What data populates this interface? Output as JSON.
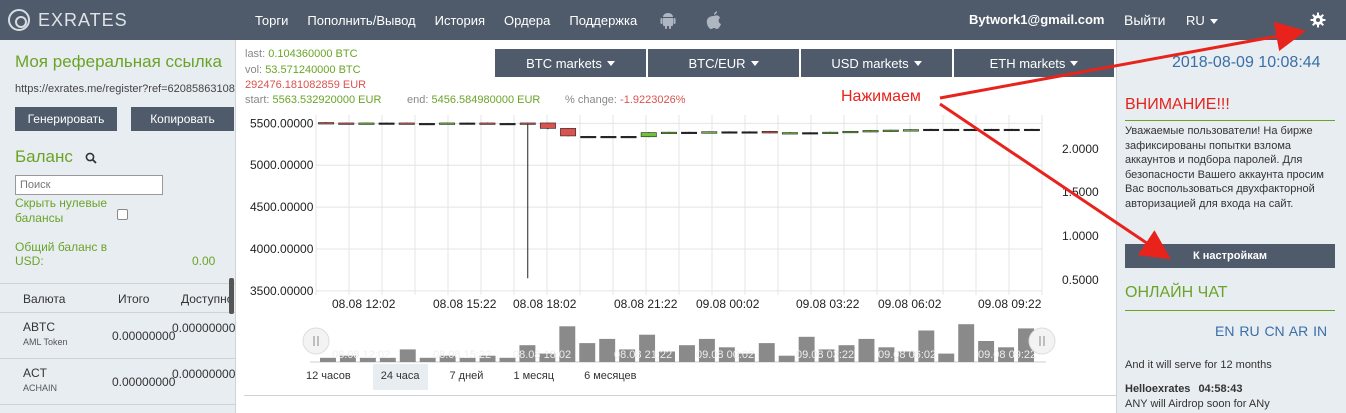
{
  "header": {
    "logo_text": "EXRATES",
    "nav": [
      "Торги",
      "Пополнить/Вывод",
      "История",
      "Ордера",
      "Поддержка"
    ],
    "os_icons": [
      "android-icon",
      "apple-icon"
    ],
    "user_email": "Bytwork1@gmail.com",
    "logout": "Выйти",
    "language": "RU",
    "settings_icon": "gear-icon"
  },
  "referral": {
    "title": "Моя реферальная ссылка",
    "url": "https://exrates.me/register?ref=62085863108",
    "generate_label": "Генерировать",
    "copy_label": "Копировать"
  },
  "balance": {
    "title": "Баланс",
    "search_placeholder": "Поиск",
    "hide_zero_label": "Скрыть нулевые балансы",
    "total_label": "Общий баланс в USD:",
    "total_value": "0.00",
    "columns": [
      "Валюта",
      "Итого",
      "Доступно"
    ],
    "rows": [
      {
        "coin": "ABTC",
        "name": "AML Token",
        "total": "0.00000000",
        "available": "0.00000000"
      },
      {
        "coin": "ACT",
        "name": "ACHAIN",
        "total": "0.00000000",
        "available": "0.00000000"
      }
    ]
  },
  "stats": {
    "last_key": "last:",
    "last_val": "0.104360000 BTC",
    "vol_key": "vol:",
    "vol_val": "53.571240000 BTC",
    "eur_val": "292476.181082859 EUR",
    "start_key": "start:",
    "start_val": "5563.532920000 EUR",
    "end_key": "end:",
    "end_val": "5456.584980000 EUR",
    "change_key": "% change:",
    "change_val": "-1.9223026%"
  },
  "markets": [
    "BTC markets",
    "BTC/EUR",
    "USD markets",
    "ETH markets"
  ],
  "annotation": "Нажимаем",
  "chart_data": {
    "type": "candlestick",
    "y_left_ticks": [
      "5500.00000",
      "5000.00000",
      "4500.00000",
      "4000.00000",
      "3500.00000"
    ],
    "y_right_ticks": [
      "2.0000",
      "1.5000",
      "1.0000",
      "0.5000"
    ],
    "x_ticks": [
      "08.08 12:02",
      "08.08 15:22",
      "08.08 18:02",
      "08.08 21:22",
      "09.08 00:02",
      "09.08 03:22",
      "09.08 06:02",
      "09.08 09:22"
    ],
    "candles": [
      {
        "o": 5510,
        "c": 5505,
        "h": 5515,
        "l": 5500
      },
      {
        "o": 5505,
        "c": 5500,
        "h": 5510,
        "l": 5495
      },
      {
        "o": 5500,
        "c": 5505,
        "h": 5510,
        "l": 5495
      },
      {
        "o": 5505,
        "c": 5505,
        "h": 5510,
        "l": 5500
      },
      {
        "o": 5505,
        "c": 5500,
        "h": 5510,
        "l": 5495
      },
      {
        "o": 5500,
        "c": 5500,
        "h": 5505,
        "l": 5495
      },
      {
        "o": 5500,
        "c": 5505,
        "h": 5510,
        "l": 5495
      },
      {
        "o": 5505,
        "c": 5505,
        "h": 5510,
        "l": 5500
      },
      {
        "o": 5505,
        "c": 5500,
        "h": 5510,
        "l": 5495
      },
      {
        "o": 5500,
        "c": 5500,
        "h": 5505,
        "l": 5495
      },
      {
        "o": 5505,
        "c": 5500,
        "h": 5510,
        "l": 3650
      },
      {
        "o": 5505,
        "c": 5440,
        "h": 5510,
        "l": 5430
      },
      {
        "o": 5440,
        "c": 5350,
        "h": 5445,
        "l": 5345
      },
      {
        "o": 5345,
        "c": 5345,
        "h": 5350,
        "l": 5340
      },
      {
        "o": 5345,
        "c": 5345,
        "h": 5350,
        "l": 5340
      },
      {
        "o": 5345,
        "c": 5345,
        "h": 5350,
        "l": 5340
      },
      {
        "o": 5340,
        "c": 5390,
        "h": 5395,
        "l": 5335
      },
      {
        "o": 5390,
        "c": 5395,
        "h": 5400,
        "l": 5385
      },
      {
        "o": 5395,
        "c": 5395,
        "h": 5400,
        "l": 5390
      },
      {
        "o": 5395,
        "c": 5400,
        "h": 5405,
        "l": 5390
      },
      {
        "o": 5400,
        "c": 5400,
        "h": 5405,
        "l": 5395
      },
      {
        "o": 5400,
        "c": 5400,
        "h": 5405,
        "l": 5395
      },
      {
        "o": 5405,
        "c": 5385,
        "h": 5410,
        "l": 5380
      },
      {
        "o": 5385,
        "c": 5390,
        "h": 5395,
        "l": 5380
      },
      {
        "o": 5390,
        "c": 5390,
        "h": 5395,
        "l": 5385
      },
      {
        "o": 5385,
        "c": 5395,
        "h": 5400,
        "l": 5380
      },
      {
        "o": 5390,
        "c": 5405,
        "h": 5410,
        "l": 5385
      },
      {
        "o": 5400,
        "c": 5415,
        "h": 5420,
        "l": 5395
      },
      {
        "o": 5405,
        "c": 5420,
        "h": 5425,
        "l": 5400
      },
      {
        "o": 5415,
        "c": 5425,
        "h": 5430,
        "l": 5410
      },
      {
        "o": 5430,
        "c": 5430,
        "h": 5435,
        "l": 5425
      },
      {
        "o": 5430,
        "c": 5430,
        "h": 5435,
        "l": 5425
      },
      {
        "o": 5430,
        "c": 5430,
        "h": 5435,
        "l": 5425
      },
      {
        "o": 5430,
        "c": 5430,
        "h": 5435,
        "l": 5425
      },
      {
        "o": 5430,
        "c": 5430,
        "h": 5435,
        "l": 5425
      },
      {
        "o": 5430,
        "c": 5430,
        "h": 5435,
        "l": 5425
      }
    ],
    "volumes": [
      0.1,
      0.15,
      0.1,
      0.1,
      0.3,
      0.1,
      0.15,
      0.1,
      0.15,
      0.1,
      0.4,
      0.2,
      0.85,
      0.45,
      0.55,
      0.3,
      0.65,
      0.25,
      0.4,
      0.55,
      0.35,
      0.2,
      0.45,
      0.15,
      0.6,
      0.3,
      0.4,
      0.55,
      0.35,
      0.25,
      0.75,
      0.2,
      0.9,
      0.5,
      0.35,
      0.8
    ],
    "volume_x_ticks": [
      "08.08 12:02",
      "08.08 15:22",
      "08.08 18:02",
      "08.08 21:22",
      "09.08 00:02",
      "09.08 03:22",
      "09.08 06:02",
      "09.08 09:22"
    ],
    "periods": [
      "12 часов",
      "24 часа",
      "7 дней",
      "1 месяц",
      "6 месяцев"
    ],
    "active_period": "24 часа",
    "up_color": "#6ec234",
    "down_color": "#d9534f"
  },
  "sidebar": {
    "datetime": "2018-08-09 10:08:44",
    "warning_title": "ВНИМАНИЕ!!!",
    "warning_text": "Уважаемые пользователи! На бирже зафиксированы попытки взлома аккаунтов и подбора паролей. Для безопасности Вашего аккаунта просим Вас воспользоваться двухфакторной авторизацией для входа на сайт.",
    "settings_button": "К настройкам",
    "chat_title": "ОНЛАЙН ЧАТ",
    "chat_languages": "EN RU CN AR IN",
    "chat_messages": [
      {
        "name": "",
        "time": "",
        "text": "And it will serve for 12 months"
      },
      {
        "name": "Helloexrates",
        "time": "04:58:43",
        "text": ""
      },
      {
        "name": "",
        "time": "",
        "text": "ANY will Airdrop soon for ANy"
      }
    ]
  }
}
